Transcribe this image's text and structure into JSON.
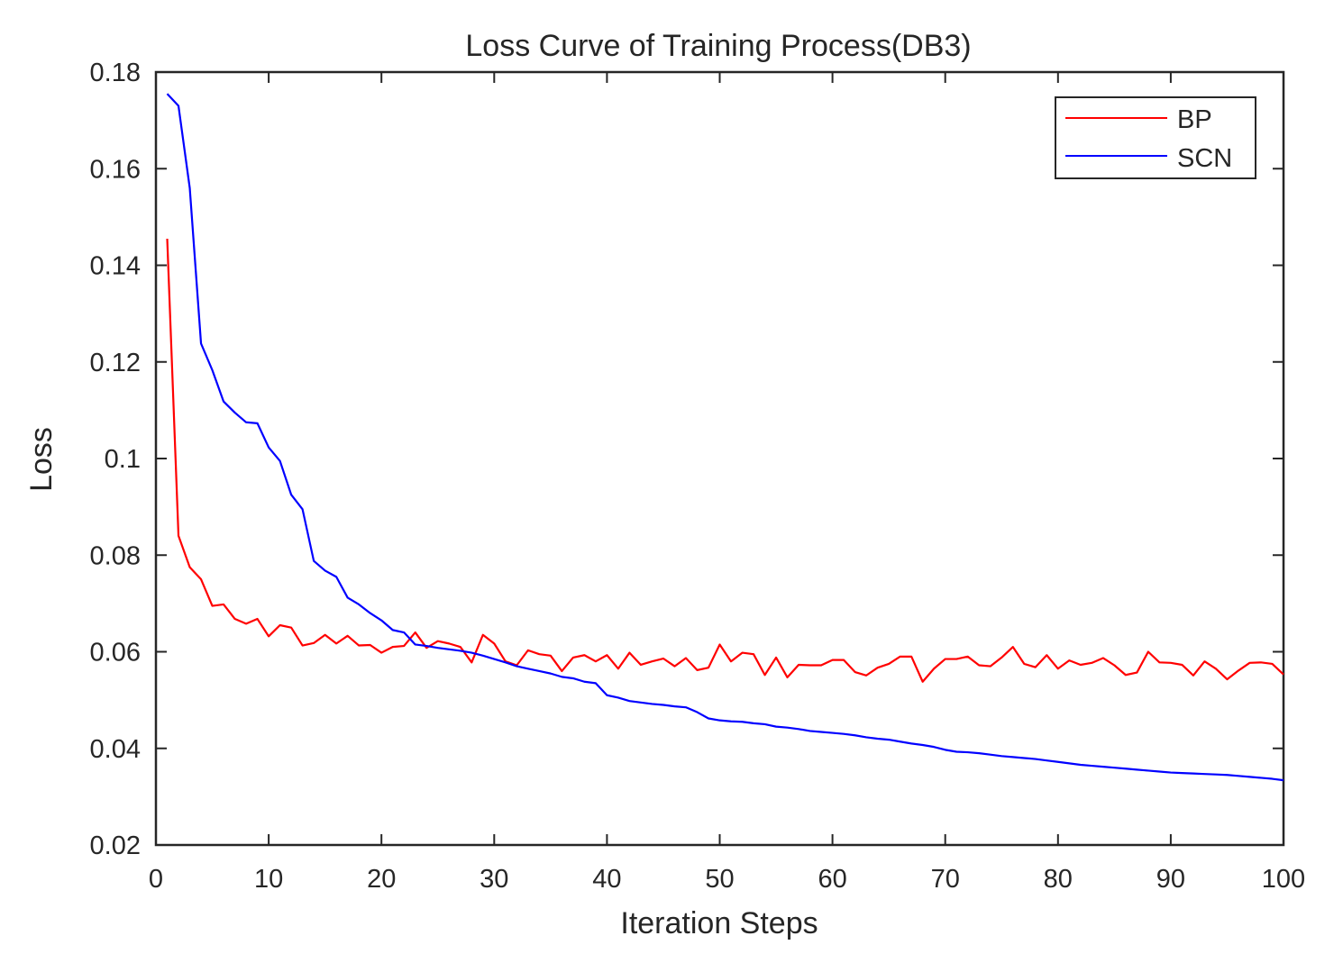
{
  "chart_data": {
    "type": "line",
    "title": "Loss Curve of Training Process(DB3)",
    "xlabel": "Iteration Steps",
    "ylabel": "Loss",
    "xlim": [
      0,
      100
    ],
    "ylim": [
      0.02,
      0.18
    ],
    "xticks": [
      0,
      10,
      20,
      30,
      40,
      50,
      60,
      70,
      80,
      90,
      100
    ],
    "xtick_labels": [
      "0",
      "10",
      "20",
      "30",
      "40",
      "50",
      "60",
      "70",
      "80",
      "90",
      "100"
    ],
    "yticks": [
      0.02,
      0.04,
      0.06,
      0.08,
      0.1,
      0.12,
      0.14,
      0.16,
      0.18
    ],
    "ytick_labels": [
      "0.02",
      "0.04",
      "0.06",
      "0.08",
      "0.1",
      "0.12",
      "0.14",
      "0.16",
      "0.18"
    ],
    "legend_position": "top-right",
    "grid": false,
    "x": [
      1,
      2,
      3,
      4,
      5,
      6,
      7,
      8,
      9,
      10,
      11,
      12,
      13,
      14,
      15,
      16,
      17,
      18,
      19,
      20,
      21,
      22,
      23,
      24,
      25,
      26,
      27,
      28,
      29,
      30,
      31,
      32,
      33,
      34,
      35,
      36,
      37,
      38,
      39,
      40,
      41,
      42,
      43,
      44,
      45,
      46,
      47,
      48,
      49,
      50,
      51,
      52,
      53,
      54,
      55,
      56,
      57,
      58,
      59,
      60,
      61,
      62,
      63,
      64,
      65,
      66,
      67,
      68,
      69,
      70,
      71,
      72,
      73,
      74,
      75,
      76,
      77,
      78,
      79,
      80,
      81,
      82,
      83,
      84,
      85,
      86,
      87,
      88,
      89,
      90,
      91,
      92,
      93,
      94,
      95,
      96,
      97,
      98,
      99,
      100
    ],
    "series": [
      {
        "name": "BP",
        "color": "#ff0000",
        "values": [
          0.1455,
          0.084,
          0.0775,
          0.075,
          0.0695,
          0.0698,
          0.0668,
          0.0658,
          0.0668,
          0.0632,
          0.0655,
          0.065,
          0.0613,
          0.0618,
          0.0635,
          0.0617,
          0.0633,
          0.0613,
          0.0614,
          0.0598,
          0.061,
          0.0612,
          0.064,
          0.0608,
          0.0622,
          0.0617,
          0.061,
          0.0578,
          0.0635,
          0.0617,
          0.058,
          0.0572,
          0.0603,
          0.0595,
          0.0592,
          0.056,
          0.0588,
          0.0593,
          0.058,
          0.0593,
          0.0565,
          0.0598,
          0.0573,
          0.058,
          0.0586,
          0.057,
          0.0587,
          0.0562,
          0.0567,
          0.0615,
          0.058,
          0.0598,
          0.0595,
          0.0552,
          0.0588,
          0.0547,
          0.0573,
          0.0572,
          0.0572,
          0.0583,
          0.0583,
          0.0558,
          0.0551,
          0.0567,
          0.0575,
          0.059,
          0.059,
          0.0538,
          0.0565,
          0.0585,
          0.0585,
          0.059,
          0.0572,
          0.057,
          0.0588,
          0.061,
          0.0575,
          0.0568,
          0.0593,
          0.0565,
          0.0582,
          0.0573,
          0.0577,
          0.0587,
          0.0572,
          0.0552,
          0.0557,
          0.06,
          0.0578,
          0.0577,
          0.0573,
          0.0551,
          0.058,
          0.0565,
          0.0543,
          0.0561,
          0.0577,
          0.0578,
          0.0575,
          0.0553
        ]
      },
      {
        "name": "SCN",
        "color": "#0000ff",
        "values": [
          0.1755,
          0.173,
          0.156,
          0.1238,
          0.1183,
          0.1118,
          0.1095,
          0.1075,
          0.1073,
          0.1023,
          0.0995,
          0.0925,
          0.0895,
          0.0788,
          0.0768,
          0.0755,
          0.0712,
          0.0698,
          0.068,
          0.0665,
          0.0645,
          0.064,
          0.0615,
          0.0612,
          0.0608,
          0.0605,
          0.0602,
          0.0598,
          0.0592,
          0.0585,
          0.0578,
          0.057,
          0.0565,
          0.056,
          0.0555,
          0.0548,
          0.0545,
          0.0538,
          0.0535,
          0.051,
          0.0505,
          0.0498,
          0.0495,
          0.0492,
          0.049,
          0.0487,
          0.0485,
          0.0475,
          0.0462,
          0.0458,
          0.0456,
          0.0455,
          0.0452,
          0.045,
          0.0445,
          0.0443,
          0.044,
          0.0436,
          0.0434,
          0.0432,
          0.043,
          0.0427,
          0.0423,
          0.042,
          0.0418,
          0.0414,
          0.041,
          0.0407,
          0.0403,
          0.0397,
          0.0393,
          0.0392,
          0.039,
          0.0387,
          0.0384,
          0.0382,
          0.038,
          0.0378,
          0.0375,
          0.0372,
          0.0369,
          0.0366,
          0.0364,
          0.0362,
          0.036,
          0.0358,
          0.0356,
          0.0354,
          0.0352,
          0.035,
          0.0349,
          0.0348,
          0.0347,
          0.0346,
          0.0345,
          0.0343,
          0.0341,
          0.0339,
          0.0337,
          0.0334
        ]
      }
    ]
  }
}
